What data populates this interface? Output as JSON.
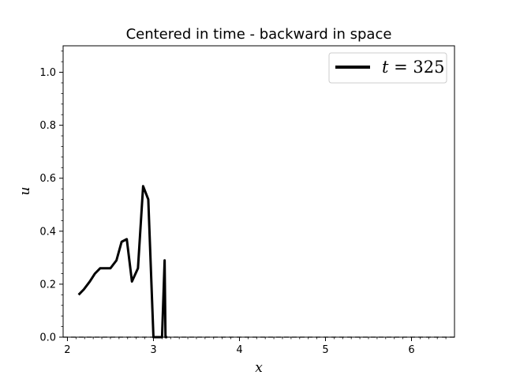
{
  "chart_data": {
    "type": "line",
    "title": "Centered in time - backward in space",
    "xlabel": "x",
    "ylabel": "u",
    "xlim": [
      1.95,
      6.5
    ],
    "ylim": [
      0.0,
      1.1
    ],
    "x_ticks": [
      2,
      3,
      4,
      5,
      6
    ],
    "x_tick_labels": [
      "2",
      "3",
      "4",
      "5",
      "6"
    ],
    "y_ticks": [
      0.0,
      0.2,
      0.4,
      0.6,
      0.8,
      1.0
    ],
    "y_tick_labels": [
      "0.0",
      "0.2",
      "0.4",
      "0.6",
      "0.8",
      "1.0"
    ],
    "grid": false,
    "legend_position": "upper right",
    "series": [
      {
        "name": "t = 325",
        "color": "#000000",
        "style": "solid",
        "x": [
          2.13,
          2.19,
          2.26,
          2.32,
          2.38,
          2.44,
          2.5,
          2.57,
          2.63,
          2.69,
          2.75,
          2.82,
          2.88,
          2.94,
          3.0,
          3.07,
          3.1,
          3.13,
          3.14,
          3.16
        ],
        "y": [
          0.16,
          0.18,
          0.21,
          0.24,
          0.26,
          0.26,
          0.26,
          0.29,
          0.36,
          0.37,
          0.21,
          0.26,
          0.57,
          0.52,
          0.0,
          0.0,
          0.0,
          0.29,
          0.0,
          0.0
        ]
      },
      {
        "name": "",
        "color": "#000000",
        "style": "dashed",
        "x": [
          1.95,
          6.5
        ],
        "y": [
          0.0,
          0.0
        ]
      }
    ],
    "legend": {
      "label_var": "t",
      "label_eq": " = ",
      "label_val": "325"
    }
  }
}
